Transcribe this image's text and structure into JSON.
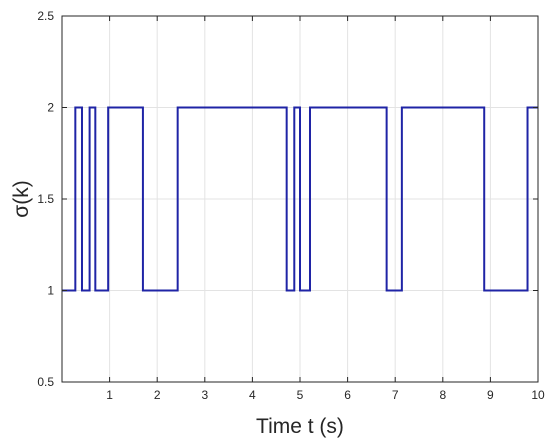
{
  "chart_data": {
    "type": "line",
    "xlabel": "Time t (s)",
    "ylabel": "σ(k)",
    "xlim": [
      0,
      10
    ],
    "ylim": [
      0.5,
      2.5
    ],
    "grid": true,
    "line_color": "#1f24a6",
    "x_ticks": [
      1,
      2,
      3,
      4,
      5,
      6,
      7,
      8,
      9,
      10
    ],
    "x_tick_labels": [
      "1",
      "2",
      "3",
      "4",
      "5",
      "6",
      "7",
      "8",
      "9",
      "10"
    ],
    "y_ticks": [
      0.5,
      1,
      1.5,
      2,
      2.5
    ],
    "y_tick_labels": [
      "0.5",
      "1",
      "1.5",
      "2",
      "2.5"
    ],
    "series": [
      {
        "style": "step",
        "points": [
          [
            0,
            1
          ],
          [
            0.28,
            1
          ],
          [
            0.28,
            2
          ],
          [
            0.42,
            2
          ],
          [
            0.42,
            1
          ],
          [
            0.58,
            1
          ],
          [
            0.58,
            2
          ],
          [
            0.7,
            2
          ],
          [
            0.7,
            1
          ],
          [
            0.97,
            1
          ],
          [
            0.97,
            2
          ],
          [
            1.7,
            2
          ],
          [
            1.7,
            1
          ],
          [
            2.43,
            1
          ],
          [
            2.43,
            2
          ],
          [
            4.72,
            2
          ],
          [
            4.72,
            1
          ],
          [
            4.88,
            1
          ],
          [
            4.88,
            2
          ],
          [
            5.0,
            2
          ],
          [
            5.0,
            1
          ],
          [
            5.21,
            1
          ],
          [
            5.21,
            2
          ],
          [
            6.82,
            2
          ],
          [
            6.82,
            1
          ],
          [
            7.14,
            1
          ],
          [
            7.14,
            2
          ],
          [
            8.87,
            2
          ],
          [
            8.87,
            1
          ],
          [
            9.78,
            1
          ],
          [
            9.78,
            2
          ],
          [
            10,
            2
          ]
        ]
      }
    ]
  }
}
